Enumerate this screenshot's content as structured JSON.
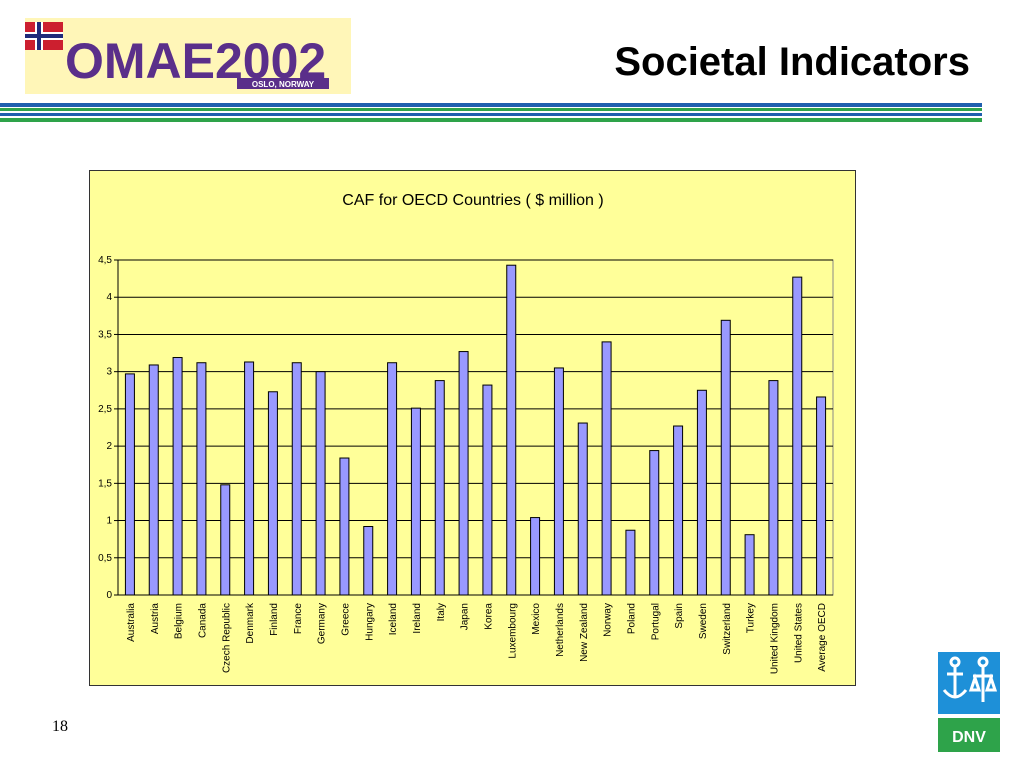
{
  "header": {
    "title": "Societal Indicators",
    "logo": {
      "text": "OMAE2002",
      "subtitle": "OSLO, NORWAY"
    }
  },
  "footer": {
    "page_number": "18",
    "dnv_logo": "DNV"
  },
  "colors": {
    "bar": "#9999ff",
    "plot_bg": "#ffff99",
    "grid": "#000000"
  },
  "chart_data": {
    "type": "bar",
    "title": "CAF for OECD Countries ( $ million )",
    "xlabel": "",
    "ylabel": "",
    "ylim": [
      0,
      4.5
    ],
    "yticks": [
      "0",
      "0,5",
      "1",
      "1,5",
      "2",
      "2,5",
      "3",
      "3,5",
      "4",
      "4,5"
    ],
    "grid": true,
    "categories": [
      "Australia",
      "Austria",
      "Belgium",
      "Canada",
      "Czech Republic",
      "Denmark",
      "Finland",
      "France",
      "Germany",
      "Greece",
      "Hungary",
      "Iceland",
      "Ireland",
      "Italy",
      "Japan",
      "Korea",
      "Luxembourg",
      "Mexico",
      "Netherlands",
      "New Zealand",
      "Norway",
      "Poland",
      "Portugal",
      "Spain",
      "Sweden",
      "Switzerland",
      "Turkey",
      "United Kingdom",
      "United States",
      "Average OECD"
    ],
    "values": [
      2.97,
      3.09,
      3.19,
      3.12,
      1.48,
      3.13,
      2.73,
      3.12,
      3.0,
      1.84,
      0.92,
      3.12,
      2.51,
      2.88,
      3.27,
      2.82,
      4.43,
      1.04,
      3.05,
      2.31,
      3.4,
      0.87,
      1.94,
      2.27,
      2.75,
      3.69,
      0.81,
      2.88,
      4.27,
      2.66
    ]
  }
}
